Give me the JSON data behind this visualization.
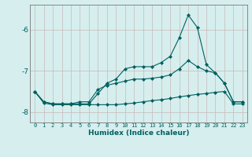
{
  "xlabel": "Humidex (Indice chaleur)",
  "background_color": "#d6eeee",
  "grid_color": "#c8b8b8",
  "line_color": "#006060",
  "hours": [
    0,
    1,
    2,
    3,
    4,
    5,
    6,
    7,
    8,
    9,
    10,
    11,
    12,
    13,
    14,
    15,
    16,
    17,
    18,
    19,
    20,
    21,
    22,
    23
  ],
  "line1_max": [
    -7.5,
    -7.75,
    -7.8,
    -7.8,
    -7.8,
    -7.8,
    -7.8,
    -7.55,
    -7.3,
    -7.2,
    -6.95,
    -6.9,
    -6.9,
    -6.9,
    -6.8,
    -6.65,
    -6.2,
    -5.65,
    -5.95,
    -6.85,
    -7.05,
    -7.3,
    -7.75,
    -7.75
  ],
  "line2_mid": [
    -7.5,
    -7.75,
    -7.8,
    -7.8,
    -7.8,
    -7.75,
    -7.75,
    -7.45,
    -7.35,
    -7.3,
    -7.25,
    -7.2,
    -7.2,
    -7.18,
    -7.15,
    -7.1,
    -6.95,
    -6.75,
    -6.9,
    -7.0,
    -7.05,
    -7.3,
    -7.75,
    -7.75
  ],
  "line3_min": [
    -7.5,
    -7.78,
    -7.82,
    -7.82,
    -7.82,
    -7.82,
    -7.82,
    -7.82,
    -7.82,
    -7.82,
    -7.8,
    -7.78,
    -7.75,
    -7.72,
    -7.7,
    -7.67,
    -7.63,
    -7.6,
    -7.57,
    -7.55,
    -7.52,
    -7.5,
    -7.8,
    -7.8
  ],
  "ylim": [
    -8.25,
    -5.4
  ],
  "yticks": [
    -8,
    -7,
    -6
  ],
  "xlim": [
    -0.5,
    23.5
  ],
  "xlabel_fontsize": 6.5,
  "tick_fontsize": 5.0
}
